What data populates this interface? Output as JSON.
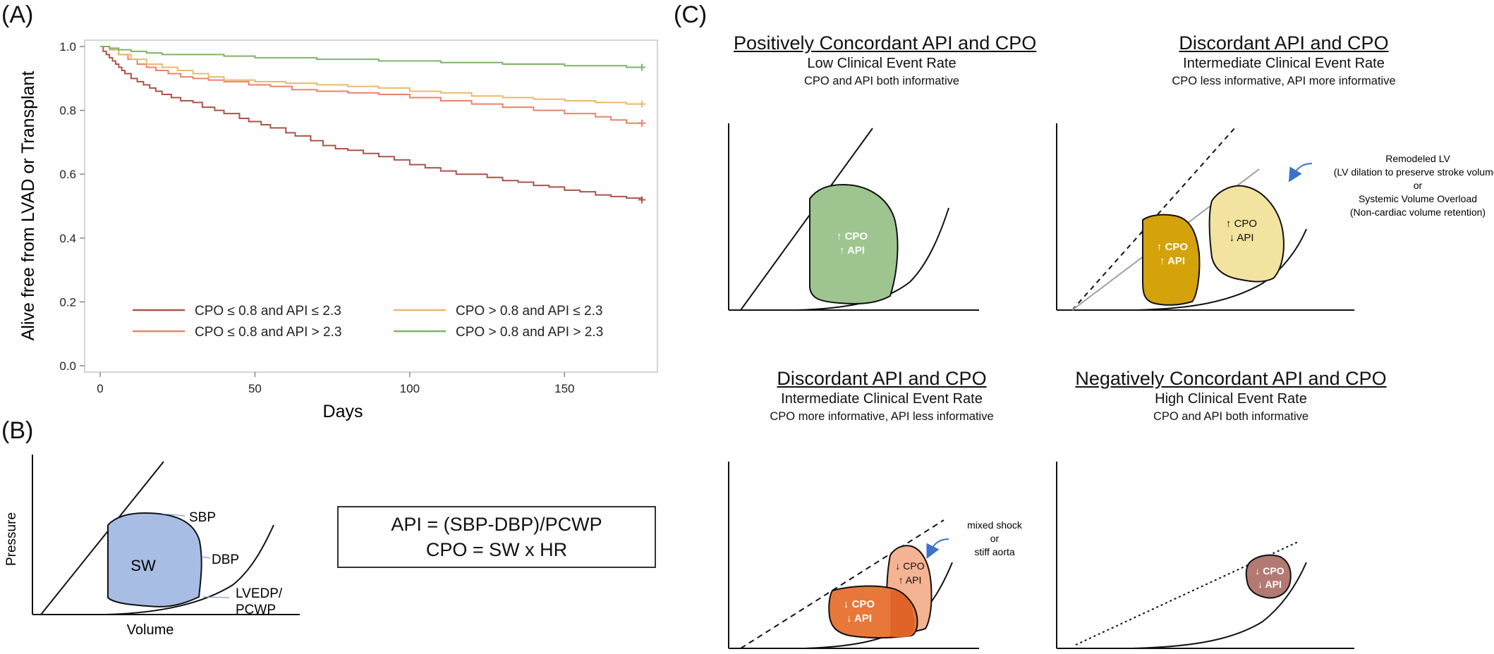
{
  "panels": {
    "a_label": "(A)",
    "b_label": "(B)",
    "c_label": "(C)"
  },
  "chart_data": {
    "type": "line",
    "subtype": "kaplan-meier",
    "title": "",
    "xlabel": "Days",
    "ylabel": "Alive free from LVAD or Transplant",
    "xlim": [
      -5,
      180
    ],
    "ylim": [
      -0.02,
      1.02
    ],
    "xticks": [
      0,
      50,
      100,
      150
    ],
    "yticks": [
      0.0,
      0.2,
      0.4,
      0.6,
      0.8,
      1.0
    ],
    "xtick_labels": [
      "0",
      "50",
      "100",
      "150"
    ],
    "ytick_labels": [
      "0.0",
      "0.2",
      "0.4",
      "0.6",
      "0.8",
      "1.0"
    ],
    "legend_position": "bottom-inside",
    "series": [
      {
        "name": "CPO ≤ 0.8 and API ≤ 2.3",
        "color": "#a8554a",
        "x": [
          0,
          1,
          2,
          3,
          4,
          5,
          6,
          7,
          8,
          10,
          12,
          14,
          16,
          18,
          20,
          23,
          26,
          30,
          33,
          37,
          40,
          45,
          48,
          52,
          55,
          60,
          63,
          68,
          72,
          76,
          80,
          85,
          90,
          95,
          100,
          105,
          110,
          115,
          120,
          125,
          130,
          135,
          140,
          145,
          150,
          155,
          160,
          165,
          170,
          175
        ],
        "values": [
          1.0,
          0.985,
          0.975,
          0.965,
          0.955,
          0.945,
          0.935,
          0.925,
          0.915,
          0.9,
          0.89,
          0.88,
          0.87,
          0.86,
          0.85,
          0.84,
          0.83,
          0.825,
          0.81,
          0.8,
          0.79,
          0.775,
          0.765,
          0.755,
          0.745,
          0.73,
          0.72,
          0.705,
          0.69,
          0.68,
          0.675,
          0.665,
          0.655,
          0.645,
          0.63,
          0.62,
          0.61,
          0.6,
          0.6,
          0.59,
          0.58,
          0.575,
          0.565,
          0.56,
          0.55,
          0.545,
          0.535,
          0.53,
          0.525,
          0.52
        ]
      },
      {
        "name": "CPO ≤ 0.8 and API > 2.3",
        "color": "#e8836b",
        "x": [
          0,
          3,
          6,
          9,
          12,
          15,
          18,
          22,
          26,
          30,
          35,
          40,
          48,
          55,
          62,
          70,
          80,
          90,
          100,
          110,
          120,
          130,
          140,
          150,
          160,
          165,
          170,
          175
        ],
        "values": [
          1.0,
          0.99,
          0.975,
          0.96,
          0.945,
          0.935,
          0.925,
          0.915,
          0.905,
          0.9,
          0.895,
          0.89,
          0.88,
          0.875,
          0.865,
          0.86,
          0.855,
          0.85,
          0.84,
          0.83,
          0.82,
          0.81,
          0.8,
          0.79,
          0.78,
          0.77,
          0.76,
          0.76
        ]
      },
      {
        "name": "CPO > 0.8 and API ≤ 2.3",
        "color": "#e9b96a",
        "x": [
          0,
          3,
          6,
          10,
          15,
          20,
          25,
          30,
          35,
          40,
          50,
          60,
          70,
          80,
          90,
          100,
          110,
          120,
          130,
          140,
          150,
          160,
          170,
          175
        ],
        "values": [
          1.0,
          0.99,
          0.975,
          0.96,
          0.945,
          0.935,
          0.925,
          0.915,
          0.905,
          0.895,
          0.89,
          0.885,
          0.88,
          0.875,
          0.87,
          0.86,
          0.855,
          0.845,
          0.84,
          0.835,
          0.83,
          0.825,
          0.82,
          0.82
        ]
      },
      {
        "name": "CPO > 0.8 and API > 2.3",
        "color": "#7fb36a",
        "x": [
          0,
          3,
          6,
          10,
          15,
          20,
          30,
          40,
          50,
          60,
          70,
          80,
          90,
          100,
          110,
          120,
          130,
          140,
          150,
          160,
          170,
          175
        ],
        "values": [
          1.0,
          0.995,
          0.99,
          0.985,
          0.98,
          0.975,
          0.975,
          0.97,
          0.965,
          0.965,
          0.96,
          0.96,
          0.955,
          0.955,
          0.95,
          0.95,
          0.945,
          0.945,
          0.94,
          0.94,
          0.935,
          0.935
        ]
      }
    ]
  },
  "panel_b": {
    "y_axis_label": "Pressure",
    "x_axis_label": "Volume",
    "loop_label": "SW",
    "sbp_label": "SBP",
    "dbp_label": "DBP",
    "lvedp_label_line1": "LVEDP/",
    "lvedp_label_line2": "PCWP",
    "formula_line1": "API = (SBP-DBP)/PCWP",
    "formula_line2": "CPO = SW x HR",
    "loop_color": "#a7bde4"
  },
  "panel_c": {
    "scenarios": [
      {
        "title": "Positively Concordant API and CPO",
        "subtitle": "Low Clinical Event Rate",
        "detail": "CPO and API both informative",
        "loop_color": "#9ec590",
        "loop_cpo": "↑ CPO",
        "loop_api": "↑ API"
      },
      {
        "title": "Discordant API and CPO",
        "subtitle": "Intermediate Clinical Event Rate",
        "detail": "CPO less informative, API more informative",
        "loop1_color": "#d4a20a",
        "loop1_cpo": "↑ CPO",
        "loop1_api": "↑ API",
        "loop2_color": "#f3e3a0",
        "loop2_cpo": "↑ CPO",
        "loop2_api": "↓ API",
        "note_line1": "Remodeled LV",
        "note_line2": "(LV dilation to preserve stroke volume)",
        "note_line3": "or",
        "note_line4": "Systemic Volume Overload",
        "note_line5": "(Non-cardiac volume retention)"
      },
      {
        "title": "Discordant API and CPO",
        "subtitle": "Intermediate Clinical Event Rate",
        "detail": "CPO more informative, API less informative",
        "loop1_color": "#e8783a",
        "loop1_cpo": "↓ CPO",
        "loop1_api": "↓ API",
        "loop2_color": "#f4b392",
        "loop2_cpo": "↓ CPO",
        "loop2_api": "↑ API",
        "note_line1": "mixed shock",
        "note_line2": "or",
        "note_line3": "stiff aorta"
      },
      {
        "title": "Negatively Concordant API and CPO",
        "subtitle": "High Clinical Event Rate",
        "detail": "CPO and API both informative",
        "loop_color": "#b27a72",
        "loop_cpo": "↓ CPO",
        "loop_api": "↓ API"
      }
    ],
    "arrow_color": "#3c72c8"
  }
}
